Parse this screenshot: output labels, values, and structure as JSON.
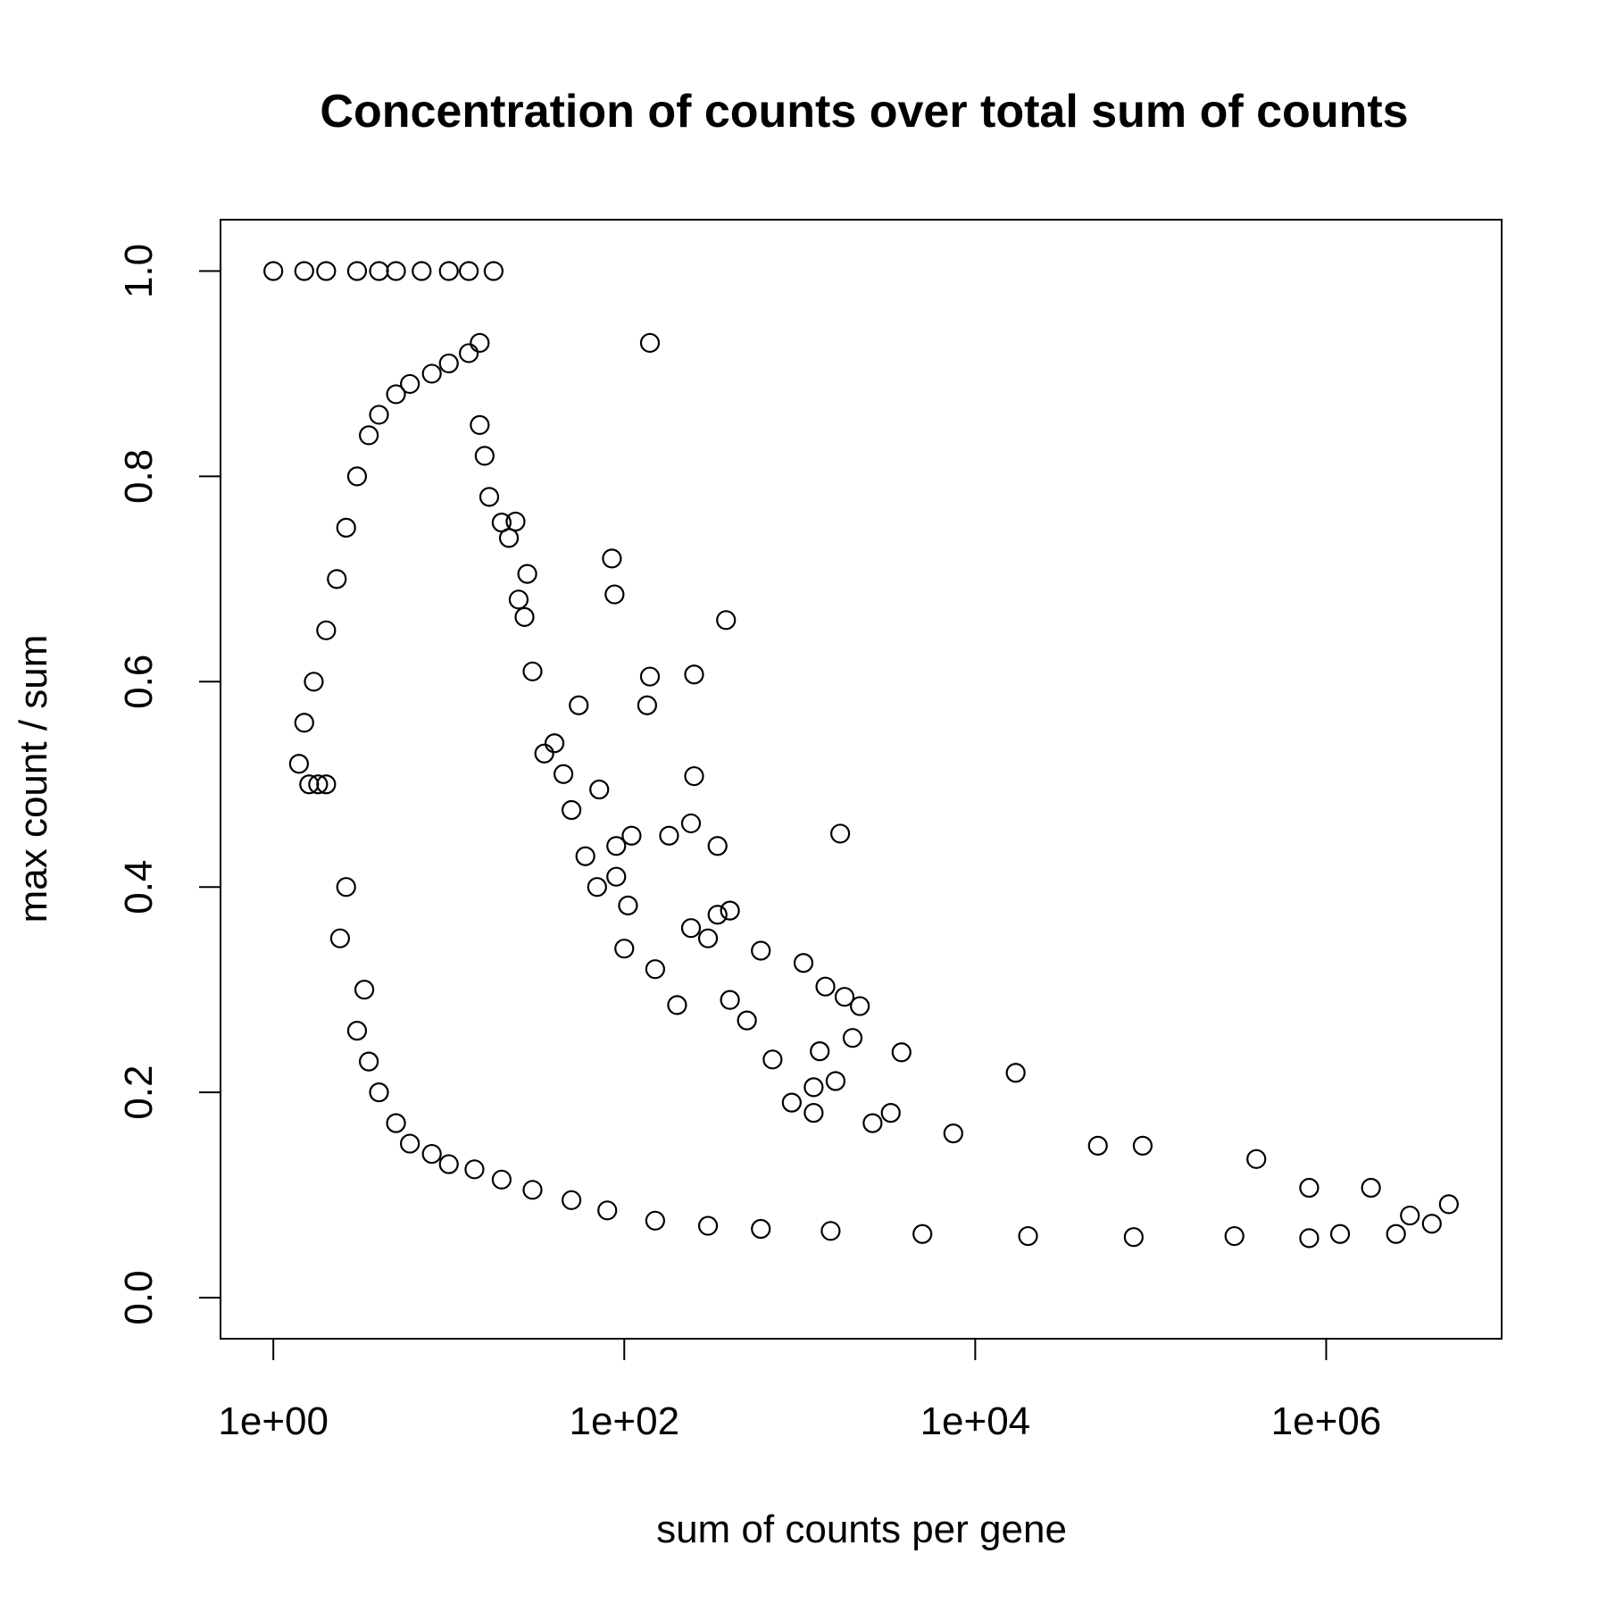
{
  "chart_data": {
    "type": "scatter",
    "title": "Concentration of counts over total sum of counts",
    "xlabel": "sum of counts per gene",
    "ylabel": "max count / sum",
    "x_scale": "log10",
    "xlim": [
      0.5,
      10000000
    ],
    "ylim": [
      -0.04,
      1.05
    ],
    "x_ticks": [
      {
        "value": 1,
        "label": "1e+00"
      },
      {
        "value": 100,
        "label": "1e+02"
      },
      {
        "value": 10000,
        "label": "1e+04"
      },
      {
        "value": 1000000,
        "label": "1e+06"
      }
    ],
    "y_ticks": [
      {
        "value": 0.0,
        "label": "0.0"
      },
      {
        "value": 0.2,
        "label": "0.2"
      },
      {
        "value": 0.4,
        "label": "0.4"
      },
      {
        "value": 0.6,
        "label": "0.6"
      },
      {
        "value": 0.8,
        "label": "0.8"
      },
      {
        "value": 1.0,
        "label": "1.0"
      }
    ],
    "grid": false,
    "marker": "open-circle",
    "marker_color": "#000000",
    "series": [
      {
        "points": [
          {
            "x": 1,
            "y": 1.0
          },
          {
            "x": 1.5,
            "y": 1.0
          },
          {
            "x": 2,
            "y": 1.0
          },
          {
            "x": 3,
            "y": 1.0
          },
          {
            "x": 4,
            "y": 1.0
          },
          {
            "x": 5,
            "y": 1.0
          },
          {
            "x": 7,
            "y": 1.0
          },
          {
            "x": 10,
            "y": 1.0
          },
          {
            "x": 13,
            "y": 1.0
          },
          {
            "x": 18,
            "y": 1.0
          },
          {
            "x": 140,
            "y": 0.93
          },
          {
            "x": 15,
            "y": 0.93
          },
          {
            "x": 13,
            "y": 0.92
          },
          {
            "x": 85,
            "y": 0.72
          },
          {
            "x": 88,
            "y": 0.685
          },
          {
            "x": 380,
            "y": 0.66
          },
          {
            "x": 140,
            "y": 0.605
          },
          {
            "x": 250,
            "y": 0.607
          },
          {
            "x": 135,
            "y": 0.577
          },
          {
            "x": 55,
            "y": 0.577
          },
          {
            "x": 250,
            "y": 0.508
          },
          {
            "x": 72,
            "y": 0.495
          },
          {
            "x": 1700,
            "y": 0.452
          },
          {
            "x": 110,
            "y": 0.45
          },
          {
            "x": 180,
            "y": 0.45
          },
          {
            "x": 240,
            "y": 0.462
          },
          {
            "x": 340,
            "y": 0.44
          },
          {
            "x": 90,
            "y": 0.44
          },
          {
            "x": 90,
            "y": 0.41
          },
          {
            "x": 400,
            "y": 0.377
          },
          {
            "x": 340,
            "y": 0.373
          },
          {
            "x": 105,
            "y": 0.382
          },
          {
            "x": 240,
            "y": 0.36
          },
          {
            "x": 300,
            "y": 0.35
          },
          {
            "x": 600,
            "y": 0.338
          },
          {
            "x": 1050,
            "y": 0.326
          },
          {
            "x": 1400,
            "y": 0.303
          },
          {
            "x": 1800,
            "y": 0.293
          },
          {
            "x": 2200,
            "y": 0.284
          },
          {
            "x": 2000,
            "y": 0.253
          },
          {
            "x": 1300,
            "y": 0.24
          },
          {
            "x": 3800,
            "y": 0.239
          },
          {
            "x": 17000,
            "y": 0.219
          },
          {
            "x": 1600,
            "y": 0.211
          },
          {
            "x": 1200,
            "y": 0.205
          },
          {
            "x": 3300,
            "y": 0.18
          },
          {
            "x": 2600,
            "y": 0.17
          },
          {
            "x": 7500,
            "y": 0.16
          },
          {
            "x": 50000,
            "y": 0.148
          },
          {
            "x": 90000,
            "y": 0.148
          },
          {
            "x": 400000,
            "y": 0.135
          },
          {
            "x": 800000,
            "y": 0.107
          },
          {
            "x": 1800000,
            "y": 0.107
          },
          {
            "x": 5000000,
            "y": 0.091
          },
          {
            "x": 3000000,
            "y": 0.08
          },
          {
            "x": 4000000,
            "y": 0.072
          },
          {
            "x": 2500000,
            "y": 0.062
          },
          {
            "x": 1200000,
            "y": 0.062
          },
          {
            "x": 1.4,
            "y": 0.52
          },
          {
            "x": 1.6,
            "y": 0.5
          },
          {
            "x": 1.8,
            "y": 0.5
          },
          {
            "x": 2,
            "y": 0.5
          },
          {
            "x": 1.5,
            "y": 0.56
          },
          {
            "x": 1.7,
            "y": 0.6
          },
          {
            "x": 2,
            "y": 0.65
          },
          {
            "x": 2.3,
            "y": 0.7
          },
          {
            "x": 2.6,
            "y": 0.75
          },
          {
            "x": 3,
            "y": 0.8
          },
          {
            "x": 3.5,
            "y": 0.84
          },
          {
            "x": 4,
            "y": 0.86
          },
          {
            "x": 5,
            "y": 0.88
          },
          {
            "x": 6,
            "y": 0.89
          },
          {
            "x": 8,
            "y": 0.9
          },
          {
            "x": 10,
            "y": 0.91
          },
          {
            "x": 2.4,
            "y": 0.35
          },
          {
            "x": 2.6,
            "y": 0.4
          },
          {
            "x": 3,
            "y": 0.26
          },
          {
            "x": 3.3,
            "y": 0.3
          },
          {
            "x": 3.5,
            "y": 0.23
          },
          {
            "x": 4,
            "y": 0.2
          },
          {
            "x": 5,
            "y": 0.17
          },
          {
            "x": 6,
            "y": 0.15
          },
          {
            "x": 8,
            "y": 0.14
          },
          {
            "x": 10,
            "y": 0.13
          },
          {
            "x": 14,
            "y": 0.125
          },
          {
            "x": 20,
            "y": 0.115
          },
          {
            "x": 30,
            "y": 0.105
          },
          {
            "x": 50,
            "y": 0.095
          },
          {
            "x": 80,
            "y": 0.085
          },
          {
            "x": 150,
            "y": 0.075
          },
          {
            "x": 300,
            "y": 0.07
          },
          {
            "x": 600,
            "y": 0.067
          },
          {
            "x": 1500,
            "y": 0.065
          },
          {
            "x": 5000,
            "y": 0.062
          },
          {
            "x": 20000,
            "y": 0.06
          },
          {
            "x": 80000,
            "y": 0.059
          },
          {
            "x": 300000,
            "y": 0.06
          },
          {
            "x": 800000,
            "y": 0.058
          },
          {
            "x": 15,
            "y": 0.85
          },
          {
            "x": 16,
            "y": 0.82
          },
          {
            "x": 17,
            "y": 0.78
          },
          {
            "x": 20,
            "y": 0.755
          },
          {
            "x": 24,
            "y": 0.756
          },
          {
            "x": 22,
            "y": 0.74
          },
          {
            "x": 25,
            "y": 0.68
          },
          {
            "x": 28,
            "y": 0.705
          },
          {
            "x": 27,
            "y": 0.663
          },
          {
            "x": 30,
            "y": 0.61
          },
          {
            "x": 35,
            "y": 0.53
          },
          {
            "x": 40,
            "y": 0.54
          },
          {
            "x": 45,
            "y": 0.51
          },
          {
            "x": 50,
            "y": 0.475
          },
          {
            "x": 60,
            "y": 0.43
          },
          {
            "x": 70,
            "y": 0.4
          },
          {
            "x": 100,
            "y": 0.34
          },
          {
            "x": 150,
            "y": 0.32
          },
          {
            "x": 200,
            "y": 0.285
          },
          {
            "x": 400,
            "y": 0.29
          },
          {
            "x": 500,
            "y": 0.27
          },
          {
            "x": 700,
            "y": 0.232
          },
          {
            "x": 900,
            "y": 0.19
          },
          {
            "x": 1200,
            "y": 0.18
          }
        ]
      }
    ]
  }
}
